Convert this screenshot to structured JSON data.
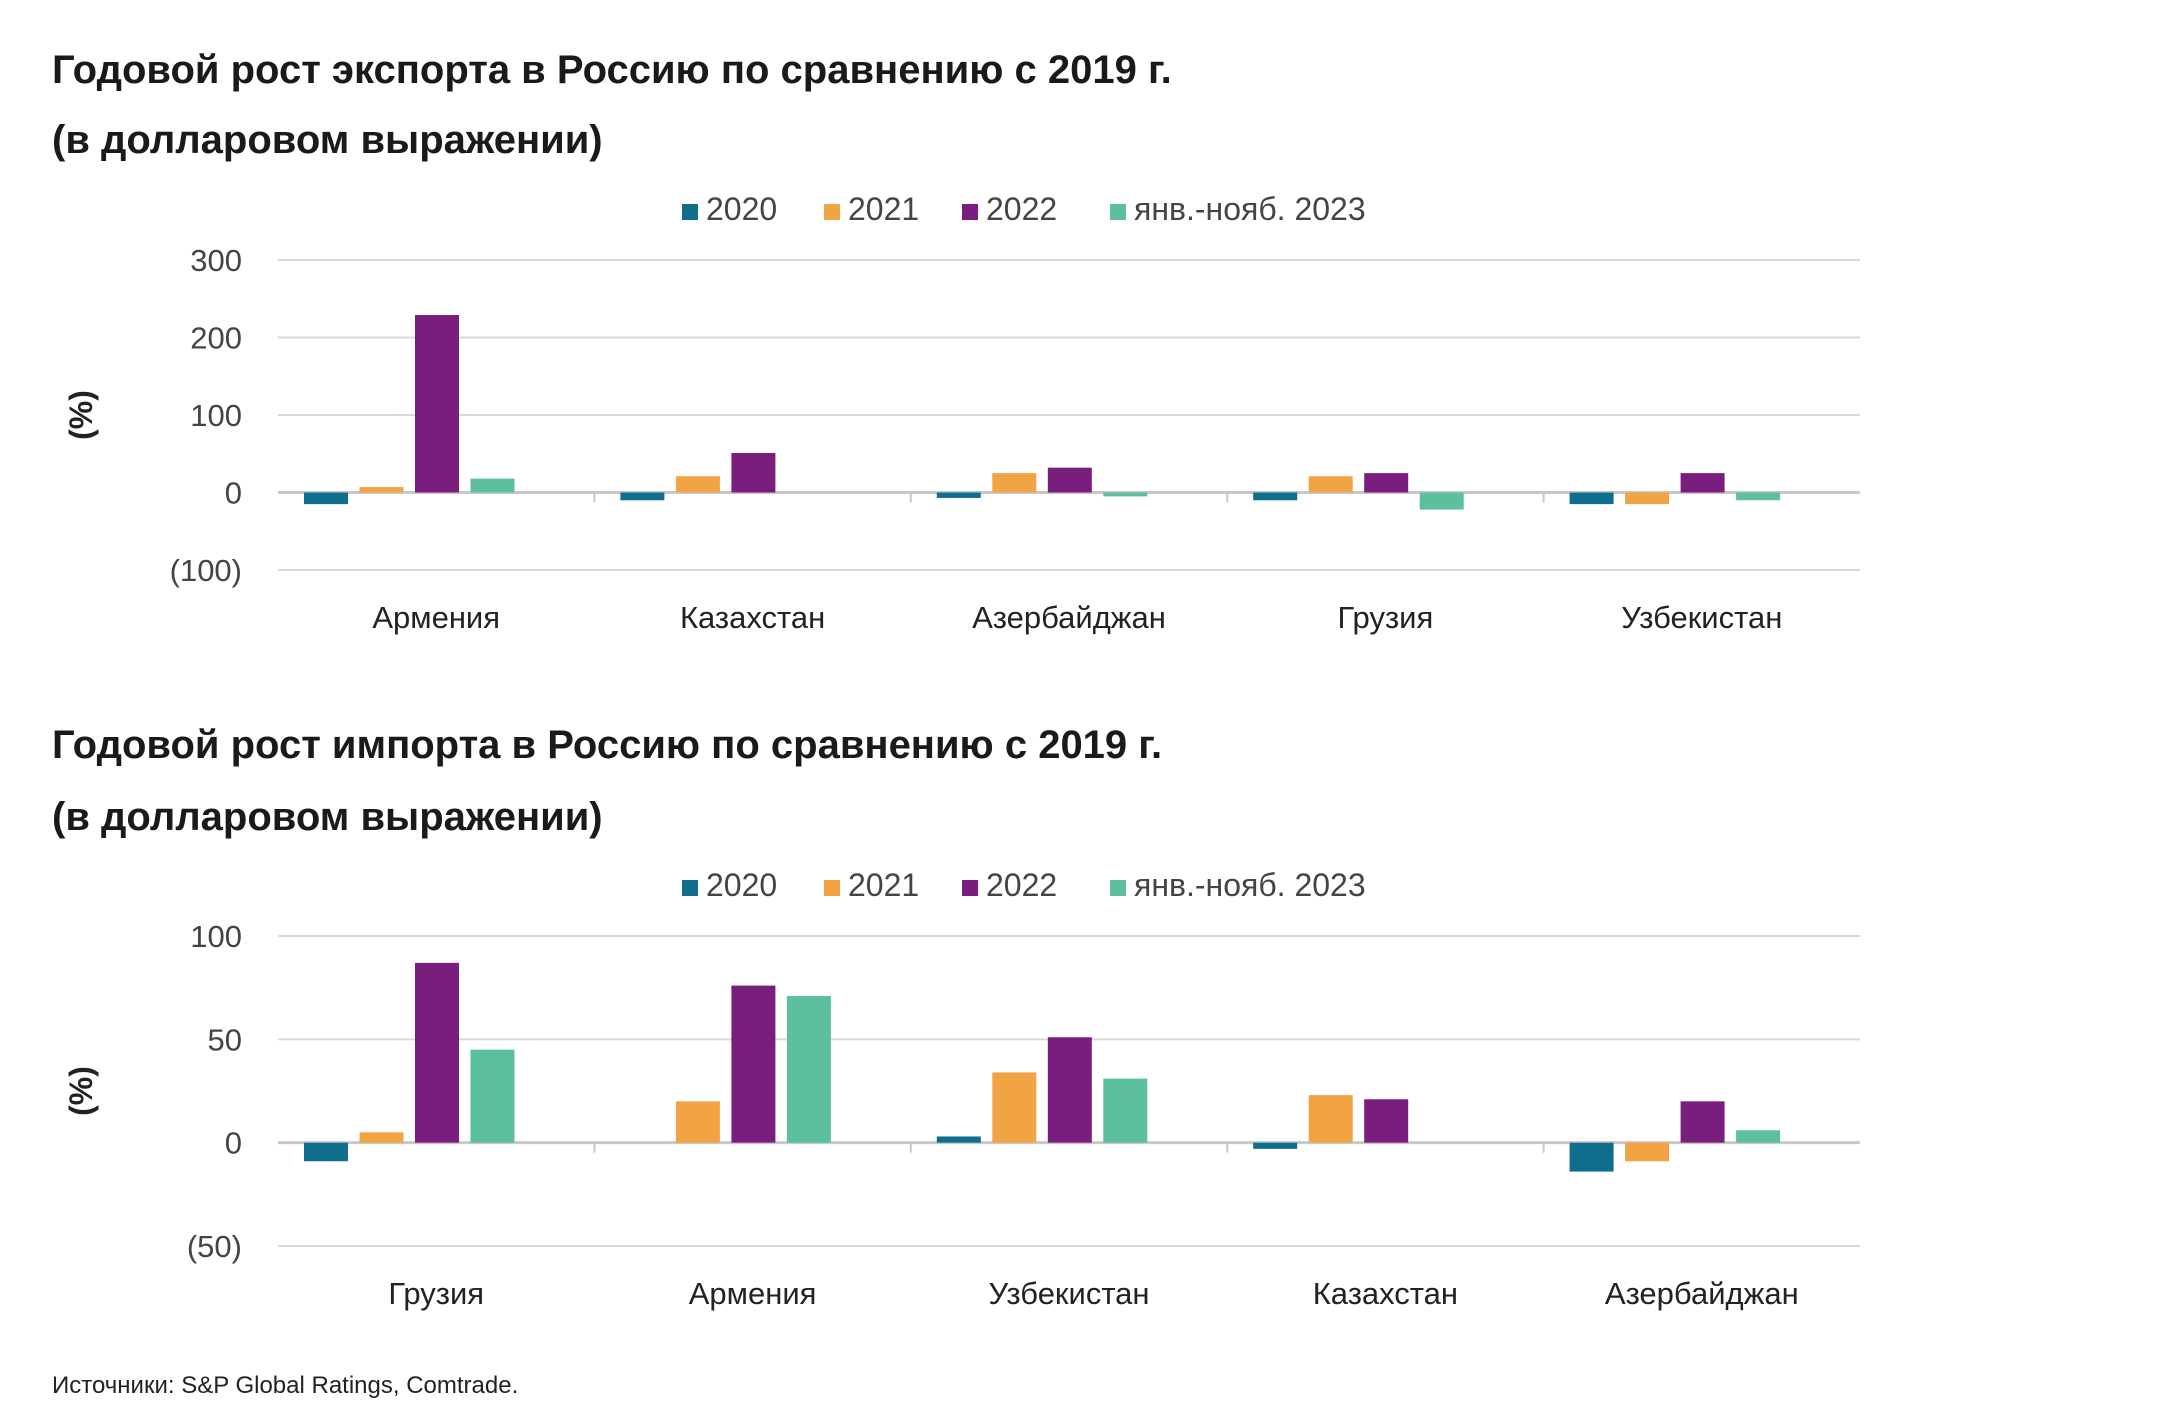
{
  "source": "Источники: S&P Global Ratings, Comtrade.",
  "colors": {
    "2020": "#0f6e8c",
    "2021": "#f2a445",
    "2022": "#7a1e7d",
    "2023": "#5cbfa0"
  },
  "chart_data": [
    {
      "type": "bar",
      "title": "Годовой рост экспорта в Россию по сравнению с 2019 г.",
      "subtitle": "(в долларовом выражении)",
      "ylabel": "(%)",
      "ylim": [
        -100,
        300
      ],
      "yticks": [
        300,
        200,
        100,
        0,
        -100
      ],
      "ytick_labels": [
        "300",
        "200",
        "100",
        "0",
        "(100)"
      ],
      "grid": true,
      "legend": "top",
      "categories": [
        "Армения",
        "Казахстан",
        "Азербайджан",
        "Грузия",
        "Узбекистан"
      ],
      "series": [
        {
          "name": "2020",
          "color": "#0f6e8c",
          "values": [
            -15,
            -10,
            -7,
            -10,
            -15
          ]
        },
        {
          "name": "2021",
          "color": "#f2a445",
          "values": [
            7,
            21,
            25,
            21,
            -15
          ]
        },
        {
          "name": "2022",
          "color": "#7a1e7d",
          "values": [
            229,
            51,
            32,
            25,
            25
          ]
        },
        {
          "name": "янв.-нояб. 2023",
          "color": "#5cbfa0",
          "values": [
            18,
            0,
            -5,
            -22,
            -10
          ]
        }
      ]
    },
    {
      "type": "bar",
      "title": "Годовой рост импорта в Россию по сравнению с 2019 г.",
      "subtitle": "(в долларовом выражении)",
      "ylabel": "(%)",
      "ylim": [
        -50,
        100
      ],
      "yticks": [
        100,
        50,
        0,
        -50
      ],
      "ytick_labels": [
        "100",
        "50",
        "0",
        "(50)"
      ],
      "grid": true,
      "legend": "top",
      "categories": [
        "Грузия",
        "Армения",
        "Узбекистан",
        "Казахстан",
        "Азербайджан"
      ],
      "series": [
        {
          "name": "2020",
          "color": "#0f6e8c",
          "values": [
            -9,
            0,
            3,
            -3,
            -14
          ]
        },
        {
          "name": "2021",
          "color": "#f2a445",
          "values": [
            5,
            20,
            34,
            23,
            -9
          ]
        },
        {
          "name": "2022",
          "color": "#7a1e7d",
          "values": [
            87,
            76,
            51,
            21,
            20
          ]
        },
        {
          "name": "янв.-нояб. 2023",
          "color": "#5cbfa0",
          "values": [
            45,
            71,
            31,
            0,
            6
          ]
        }
      ]
    }
  ]
}
